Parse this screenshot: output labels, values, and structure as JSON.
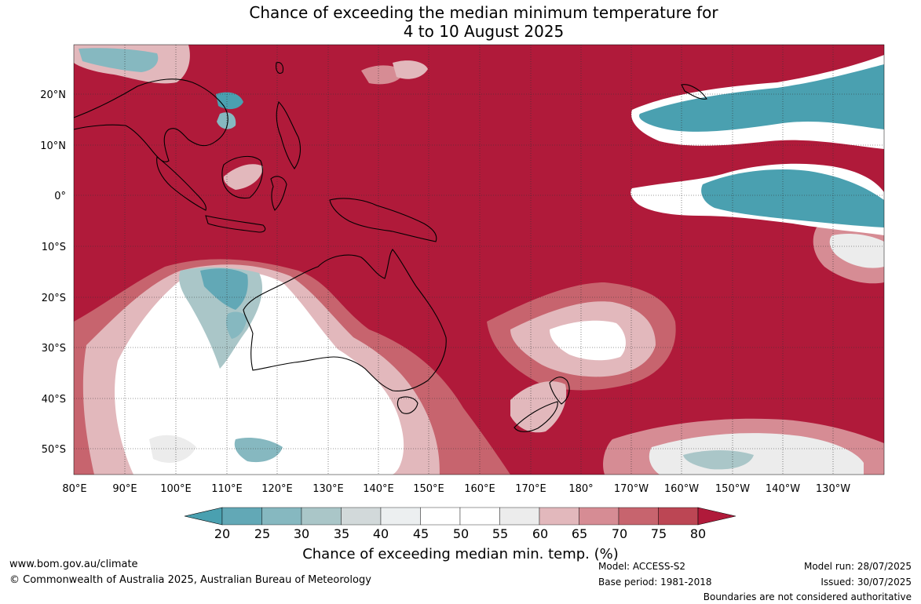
{
  "title": {
    "line1": "Chance of exceeding the median minimum temperature for",
    "line2": "4 to 10 August 2025"
  },
  "map": {
    "lat_labels": [
      "20°N",
      "10°N",
      "0°",
      "10°S",
      "20°S",
      "30°S",
      "40°S",
      "50°S"
    ],
    "lon_labels": [
      "80°E",
      "90°E",
      "100°E",
      "110°E",
      "120°E",
      "130°E",
      "140°E",
      "150°E",
      "160°E",
      "170°E",
      "180°",
      "170°W",
      "160°W",
      "150°W",
      "140°W",
      "130°W"
    ],
    "background_color": "#b01a3a"
  },
  "colorbar": {
    "ticks": [
      "20",
      "25",
      "30",
      "35",
      "40",
      "45",
      "50",
      "55",
      "60",
      "65",
      "70",
      "75",
      "80"
    ],
    "colors": [
      "#4aa0b0",
      "#62a8b6",
      "#86b8c0",
      "#aac6c8",
      "#d2d9da",
      "#eceff0",
      "#ffffff",
      "#ffffff",
      "#ececec",
      "#e2b8bc",
      "#d68c94",
      "#c7646e",
      "#bc4654",
      "#b01a3a"
    ],
    "label": "Chance of exceeding median min. temp. (%)"
  },
  "footer": {
    "url": "www.bom.gov.au/climate",
    "copyright": "© Commonwealth of Australia 2025, Australian Bureau of Meteorology",
    "model": "Model: ACCESS-S2",
    "base_period": "Base period: 1981-2018",
    "model_run": "Model run: 28/07/2025",
    "issued": "Issued: 30/07/2025",
    "disclaimer": "Boundaries are not considered authoritative"
  }
}
